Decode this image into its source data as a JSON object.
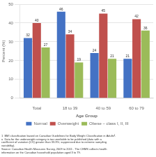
{
  "chart_data": {
    "type": "bar",
    "ylabel": "Percent (%)",
    "xlabel": "Age Group",
    "categories": [
      "Total",
      "18 to 39",
      "40 to 59",
      "60 to 79"
    ],
    "series": [
      {
        "name": "Normal",
        "color": "#4472c4",
        "values": [
          32,
          46,
          24,
          21
        ]
      },
      {
        "name": "Overweight",
        "color": "#c0504d",
        "values": [
          40,
          34,
          45,
          42
        ]
      },
      {
        "name": "Obese − class I, II, III",
        "color": "#9bbb59",
        "values": [
          27,
          19,
          21,
          36
        ]
      }
    ],
    "ylim": [
      0,
      50
    ],
    "yticks": [
      0,
      10,
      20,
      30,
      40,
      50
    ],
    "grid": true,
    "data_labels": true,
    "legend": "bottom",
    "annotations": [
      "1  BMI classification based on Canadian Guidelines for Body Weight Classification in Adults².\na  Data for the underweight category is too unreliable to be published (data with a\ncoefficient of variation (CV) greater than 33.3%; suppressed due to extreme sampling\nvariability).\nSource: Canadian Health Measures Survey, 2009 to 2011 . The CHMS collects health\ninformation on the Canadian household population aged 3 to 79."
    ]
  }
}
